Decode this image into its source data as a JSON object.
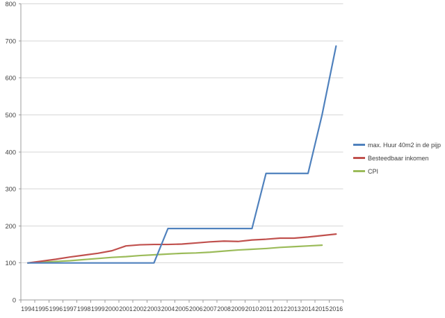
{
  "chart_data": {
    "type": "line",
    "title": "",
    "xlabel": "",
    "ylabel": "",
    "x": [
      "1994",
      "1995",
      "1996",
      "1997",
      "1998",
      "1999",
      "2000",
      "2001",
      "2002",
      "2003",
      "2004",
      "2005",
      "2006",
      "2007",
      "2008",
      "2009",
      "2010",
      "2011",
      "2012",
      "2013",
      "2014",
      "2015",
      "2016"
    ],
    "series": [
      {
        "name": "max. Huur 40m2 in de pijp",
        "color": "#4F81BD",
        "values": [
          100,
          100,
          100,
          100,
          100,
          100,
          100,
          100,
          100,
          100,
          193,
          193,
          193,
          193,
          193,
          193,
          193,
          342,
          342,
          342,
          342,
          500,
          686
        ]
      },
      {
        "name": "Besteedbaar inkomen",
        "color": "#C0504D",
        "values": [
          100,
          105,
          110,
          116,
          121,
          126,
          133,
          146,
          149,
          150,
          150,
          151,
          154,
          157,
          159,
          158,
          162,
          164,
          167,
          167,
          170,
          174,
          178
        ]
      },
      {
        "name": "CPI",
        "color": "#9BBB59",
        "values": [
          100,
          102,
          104,
          106,
          109,
          112,
          115,
          117,
          120,
          122,
          124,
          126,
          127,
          129,
          132,
          135,
          137,
          139,
          142,
          144,
          146,
          148,
          null
        ]
      }
    ],
    "ylim": [
      0,
      800
    ],
    "ytick_step": 100,
    "yticks": [
      0,
      100,
      200,
      300,
      400,
      500,
      600,
      700,
      800
    ],
    "grid": true,
    "legend_position": "right",
    "colors": {
      "grid": "#d6d6d6",
      "axis": "#9b9b9b",
      "tick_text": "#404040",
      "background": "#ffffff"
    }
  }
}
